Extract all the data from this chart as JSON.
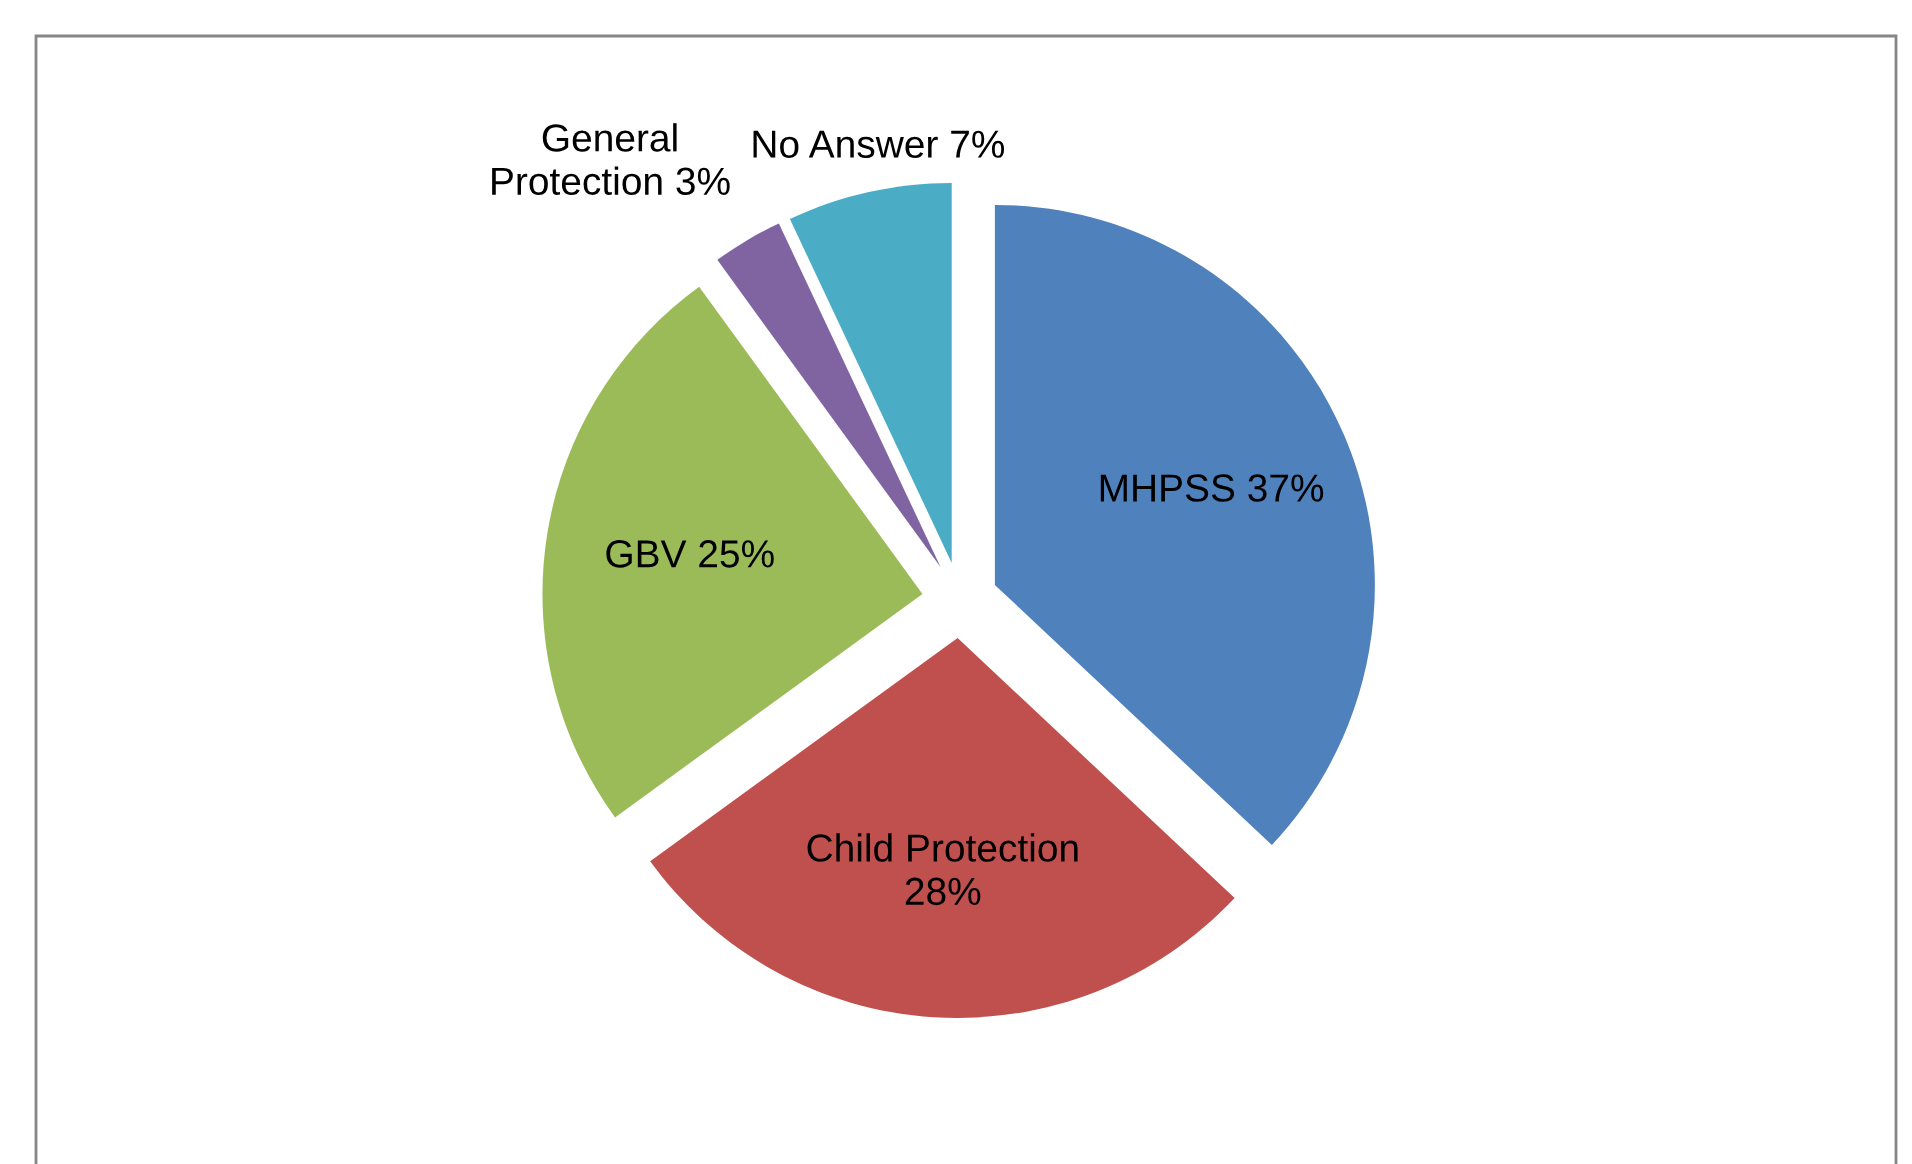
{
  "chart_data": {
    "type": "pie",
    "categories": [
      "MHPSS",
      "Child Protection",
      "GBV",
      "General Protection",
      "No Answer"
    ],
    "values": [
      37,
      28,
      25,
      3,
      7
    ],
    "colors": [
      "#4f81bd",
      "#c0504d",
      "#9bbb59",
      "#8064a2",
      "#4bacc6"
    ],
    "value_labels": [
      "37%",
      "28%",
      "25%",
      "3%",
      "7%"
    ]
  }
}
